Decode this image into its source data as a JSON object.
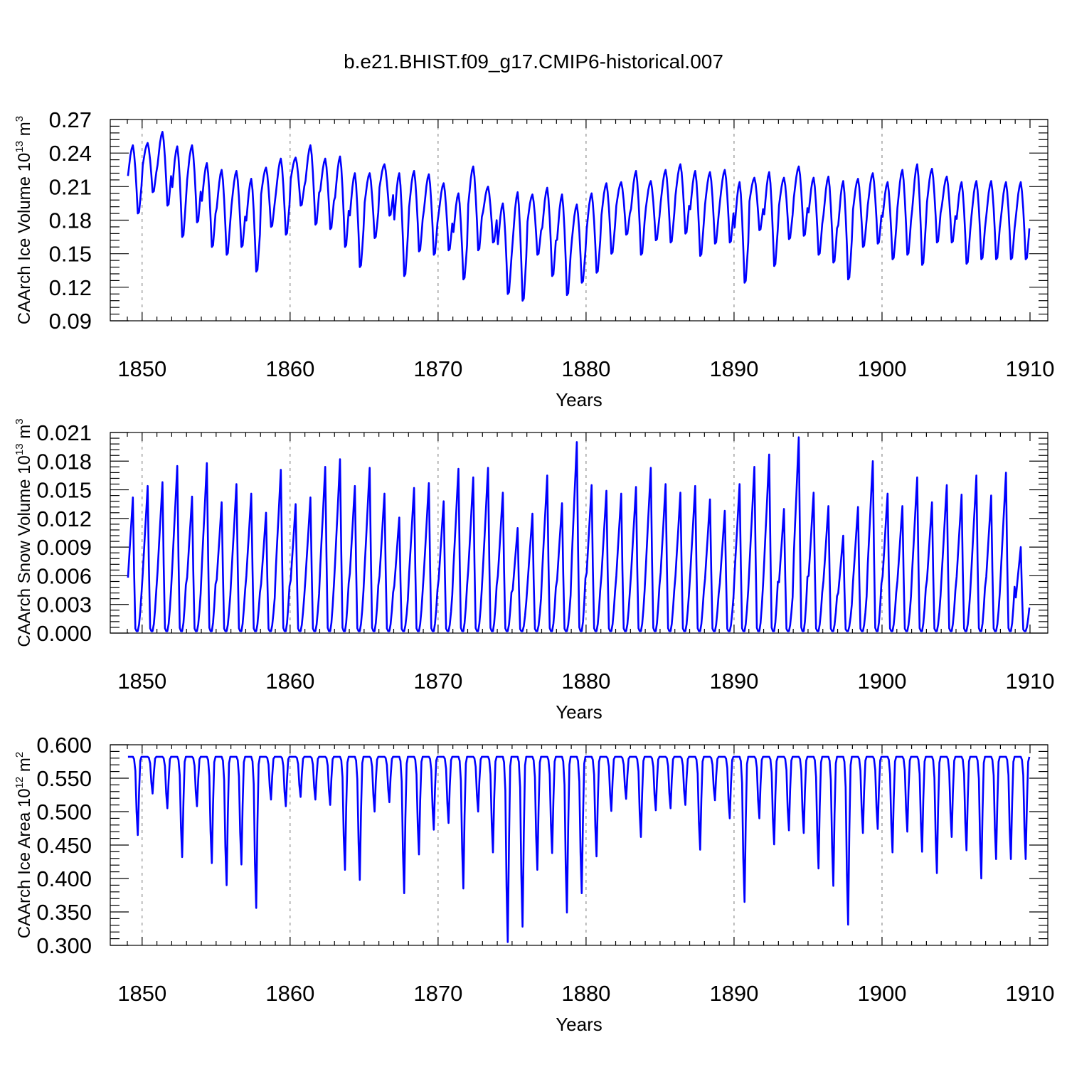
{
  "chart_data": [
    {
      "type": "line",
      "title": "b.e21.BHIST.f09_g17.CMIP6-historical.007",
      "xlabel": "Years",
      "ylabel": {
        "base": "CAArch Ice Volume 10",
        "exp": "13",
        "unit": " m",
        "unit_exp": "3"
      },
      "xlim": [
        1849,
        1910
      ],
      "ylim": [
        0.09,
        0.27
      ],
      "x_ticks": [
        1850,
        1860,
        1870,
        1880,
        1890,
        1900,
        1910
      ],
      "y_ticks": [
        "0.09",
        "0.12",
        "0.15",
        "0.18",
        "0.21",
        "0.24",
        "0.27"
      ],
      "grid": "dashed vertical at decades",
      "series": [
        {
          "name": "ice_volume",
          "color": "#0000ff",
          "year_start": 1849,
          "annual_max": [
            0.247,
            0.249,
            0.259,
            0.246,
            0.247,
            0.231,
            0.225,
            0.224,
            0.217,
            0.227,
            0.235,
            0.236,
            0.247,
            0.235,
            0.237,
            0.222,
            0.222,
            0.23,
            0.222,
            0.224,
            0.221,
            0.213,
            0.204,
            0.228,
            0.21,
            0.195,
            0.205,
            0.203,
            0.209,
            0.203,
            0.194,
            0.204,
            0.213,
            0.214,
            0.224,
            0.215,
            0.225,
            0.23,
            0.224,
            0.223,
            0.225,
            0.214,
            0.218,
            0.223,
            0.218,
            0.228,
            0.218,
            0.219,
            0.215,
            0.217,
            0.222,
            0.214,
            0.225,
            0.23,
            0.226,
            0.219,
            0.214,
            0.215,
            0.215,
            0.214,
            0.214
          ],
          "annual_min": [
            0.186,
            0.205,
            0.193,
            0.165,
            0.178,
            0.156,
            0.149,
            0.156,
            0.134,
            0.174,
            0.167,
            0.193,
            0.176,
            0.172,
            0.156,
            0.138,
            0.164,
            0.184,
            0.13,
            0.152,
            0.149,
            0.153,
            0.127,
            0.153,
            0.16,
            0.114,
            0.108,
            0.149,
            0.13,
            0.113,
            0.124,
            0.133,
            0.15,
            0.167,
            0.149,
            0.162,
            0.16,
            0.168,
            0.148,
            0.159,
            0.16,
            0.124,
            0.171,
            0.139,
            0.163,
            0.166,
            0.149,
            0.142,
            0.127,
            0.156,
            0.159,
            0.145,
            0.149,
            0.14,
            0.16,
            0.16,
            0.141,
            0.145,
            0.145,
            0.145,
            0.145
          ]
        }
      ]
    },
    {
      "type": "line",
      "xlabel": "Years",
      "ylabel": {
        "base": "CAArch Snow Volume 10",
        "exp": "13",
        "unit": " m",
        "unit_exp": "3"
      },
      "xlim": [
        1849,
        1910
      ],
      "ylim": [
        0.0,
        0.021
      ],
      "x_ticks": [
        1850,
        1860,
        1870,
        1880,
        1890,
        1900,
        1910
      ],
      "y_ticks": [
        "0.000",
        "0.003",
        "0.006",
        "0.009",
        "0.012",
        "0.015",
        "0.018",
        "0.021"
      ],
      "grid": "dashed vertical at decades",
      "series": [
        {
          "name": "snow_volume",
          "color": "#0000ff",
          "year_start": 1849,
          "annual_max": [
            0.0142,
            0.0154,
            0.0158,
            0.0175,
            0.0143,
            0.0178,
            0.0137,
            0.0156,
            0.0146,
            0.0126,
            0.0171,
            0.0135,
            0.0142,
            0.0174,
            0.0182,
            0.0154,
            0.0173,
            0.0146,
            0.0121,
            0.0152,
            0.0157,
            0.0138,
            0.0172,
            0.0163,
            0.0173,
            0.0147,
            0.011,
            0.0125,
            0.0165,
            0.0136,
            0.02,
            0.0155,
            0.0149,
            0.0146,
            0.0153,
            0.0173,
            0.0156,
            0.0147,
            0.0154,
            0.014,
            0.0128,
            0.0156,
            0.0174,
            0.0187,
            0.013,
            0.0205,
            0.0147,
            0.0133,
            0.0102,
            0.0132,
            0.018,
            0.0146,
            0.0133,
            0.0163,
            0.0137,
            0.0155,
            0.0145,
            0.0165,
            0.0144,
            0.0168,
            0.009
          ],
          "annual_min": 0.0002
        }
      ]
    },
    {
      "type": "line",
      "xlabel": "Years",
      "ylabel": {
        "base": "CAArch Ice Area 10",
        "exp": "12",
        "unit": " m",
        "unit_exp": "2"
      },
      "xlim": [
        1849,
        1910
      ],
      "ylim": [
        0.3,
        0.6
      ],
      "x_ticks": [
        1850,
        1860,
        1870,
        1880,
        1890,
        1900,
        1910
      ],
      "y_ticks": [
        "0.300",
        "0.350",
        "0.400",
        "0.450",
        "0.500",
        "0.550",
        "0.600"
      ],
      "grid": "dashed vertical at decades",
      "series": [
        {
          "name": "ice_area",
          "color": "#0000ff",
          "year_start": 1849,
          "annual_max": 0.582,
          "annual_min": [
            0.465,
            0.527,
            0.505,
            0.432,
            0.508,
            0.423,
            0.39,
            0.421,
            0.356,
            0.518,
            0.508,
            0.522,
            0.518,
            0.51,
            0.413,
            0.398,
            0.5,
            0.514,
            0.378,
            0.436,
            0.473,
            0.483,
            0.385,
            0.5,
            0.439,
            0.305,
            0.328,
            0.413,
            0.438,
            0.349,
            0.378,
            0.433,
            0.501,
            0.519,
            0.462,
            0.502,
            0.505,
            0.51,
            0.443,
            0.517,
            0.49,
            0.365,
            0.49,
            0.451,
            0.472,
            0.468,
            0.415,
            0.389,
            0.331,
            0.468,
            0.474,
            0.439,
            0.47,
            0.44,
            0.408,
            0.462,
            0.442,
            0.4,
            0.429,
            0.429,
            0.429
          ]
        }
      ]
    }
  ]
}
